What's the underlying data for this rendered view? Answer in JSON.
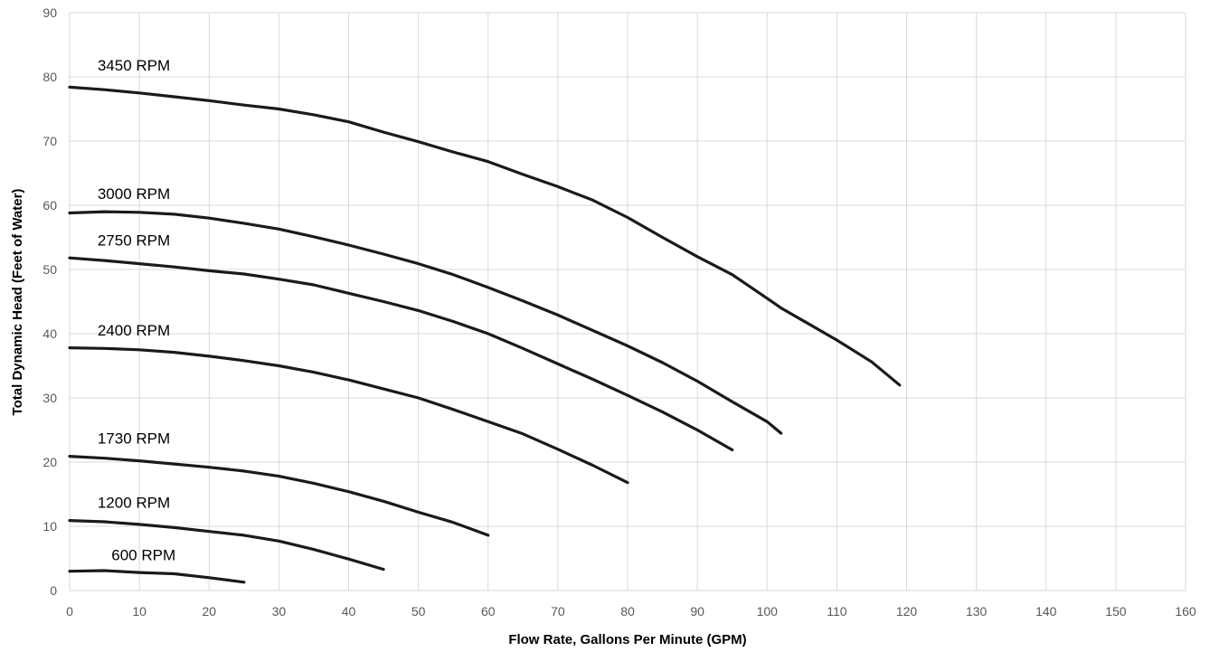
{
  "chart_data": {
    "type": "line",
    "title": "",
    "xlabel": "Flow Rate, Gallons Per Minute (GPM)",
    "ylabel": "Total Dynamic Head (Feet of Water)",
    "xlim": [
      0,
      160
    ],
    "ylim": [
      0,
      90
    ],
    "x_ticks": [
      0,
      10,
      20,
      30,
      40,
      50,
      60,
      70,
      80,
      90,
      100,
      110,
      120,
      130,
      140,
      150,
      160
    ],
    "y_ticks": [
      0,
      10,
      20,
      30,
      40,
      50,
      60,
      70,
      80,
      90
    ],
    "grid": true,
    "legend": "none",
    "line_color": "#1a1a1a",
    "series": [
      {
        "name": "3450 RPM",
        "x": [
          0,
          5,
          10,
          15,
          20,
          25,
          30,
          35,
          40,
          45,
          50,
          55,
          60,
          65,
          70,
          75,
          80,
          85,
          90,
          95,
          100,
          102,
          110,
          115,
          119
        ],
        "y": [
          78.4,
          78,
          77.5,
          76.9,
          76.3,
          75.6,
          75,
          74.1,
          73,
          71.4,
          69.9,
          68.3,
          66.8,
          64.8,
          62.9,
          60.8,
          58.1,
          55,
          52,
          49.2,
          45.5,
          44,
          39,
          35.6,
          32
        ]
      },
      {
        "name": "3000 RPM",
        "x": [
          0,
          5,
          10,
          15,
          20,
          25,
          30,
          35,
          40,
          45,
          50,
          55,
          60,
          65,
          70,
          75,
          80,
          85,
          90,
          95,
          100,
          102
        ],
        "y": [
          58.8,
          59,
          58.9,
          58.6,
          58,
          57.2,
          56.3,
          55.1,
          53.8,
          52.4,
          50.9,
          49.2,
          47.2,
          45.1,
          42.9,
          40.5,
          38.1,
          35.5,
          32.6,
          29.4,
          26.3,
          24.5
        ]
      },
      {
        "name": "2750 RPM",
        "x": [
          0,
          5,
          10,
          15,
          20,
          25,
          30,
          35,
          40,
          45,
          50,
          55,
          60,
          65,
          70,
          75,
          80,
          85,
          90,
          95
        ],
        "y": [
          51.8,
          51.4,
          50.9,
          50.4,
          49.8,
          49.3,
          48.5,
          47.6,
          46.3,
          45,
          43.6,
          41.9,
          40,
          37.7,
          35.3,
          32.9,
          30.4,
          27.8,
          25,
          21.9
        ]
      },
      {
        "name": "2400 RPM",
        "x": [
          0,
          5,
          10,
          15,
          20,
          25,
          30,
          35,
          40,
          45,
          50,
          55,
          60,
          65,
          70,
          75,
          80
        ],
        "y": [
          37.8,
          37.7,
          37.5,
          37.1,
          36.5,
          35.8,
          35,
          34,
          32.8,
          31.4,
          30,
          28.2,
          26.3,
          24.4,
          22,
          19.5,
          16.8
        ]
      },
      {
        "name": "1730 RPM",
        "x": [
          0,
          5,
          10,
          15,
          20,
          25,
          30,
          35,
          40,
          45,
          50,
          55,
          60
        ],
        "y": [
          20.9,
          20.6,
          20.2,
          19.7,
          19.2,
          18.6,
          17.8,
          16.7,
          15.4,
          13.9,
          12.2,
          10.6,
          8.6
        ]
      },
      {
        "name": "1200 RPM",
        "x": [
          0,
          5,
          10,
          15,
          20,
          25,
          30,
          35,
          40,
          45
        ],
        "y": [
          10.9,
          10.7,
          10.3,
          9.8,
          9.2,
          8.6,
          7.7,
          6.4,
          4.9,
          3.3
        ]
      },
      {
        "name": "600 RPM",
        "x": [
          0,
          5,
          10,
          15,
          20,
          25
        ],
        "y": [
          3,
          3.1,
          2.8,
          2.6,
          2,
          1.3
        ]
      }
    ],
    "series_label_anchor": [
      {
        "x": 4,
        "y": 81
      },
      {
        "x": 4,
        "y": 61
      },
      {
        "x": 4,
        "y": 53.7
      },
      {
        "x": 4,
        "y": 39.7
      },
      {
        "x": 4,
        "y": 22.9
      },
      {
        "x": 4,
        "y": 12.9
      },
      {
        "x": 6,
        "y": 4.7
      }
    ]
  }
}
